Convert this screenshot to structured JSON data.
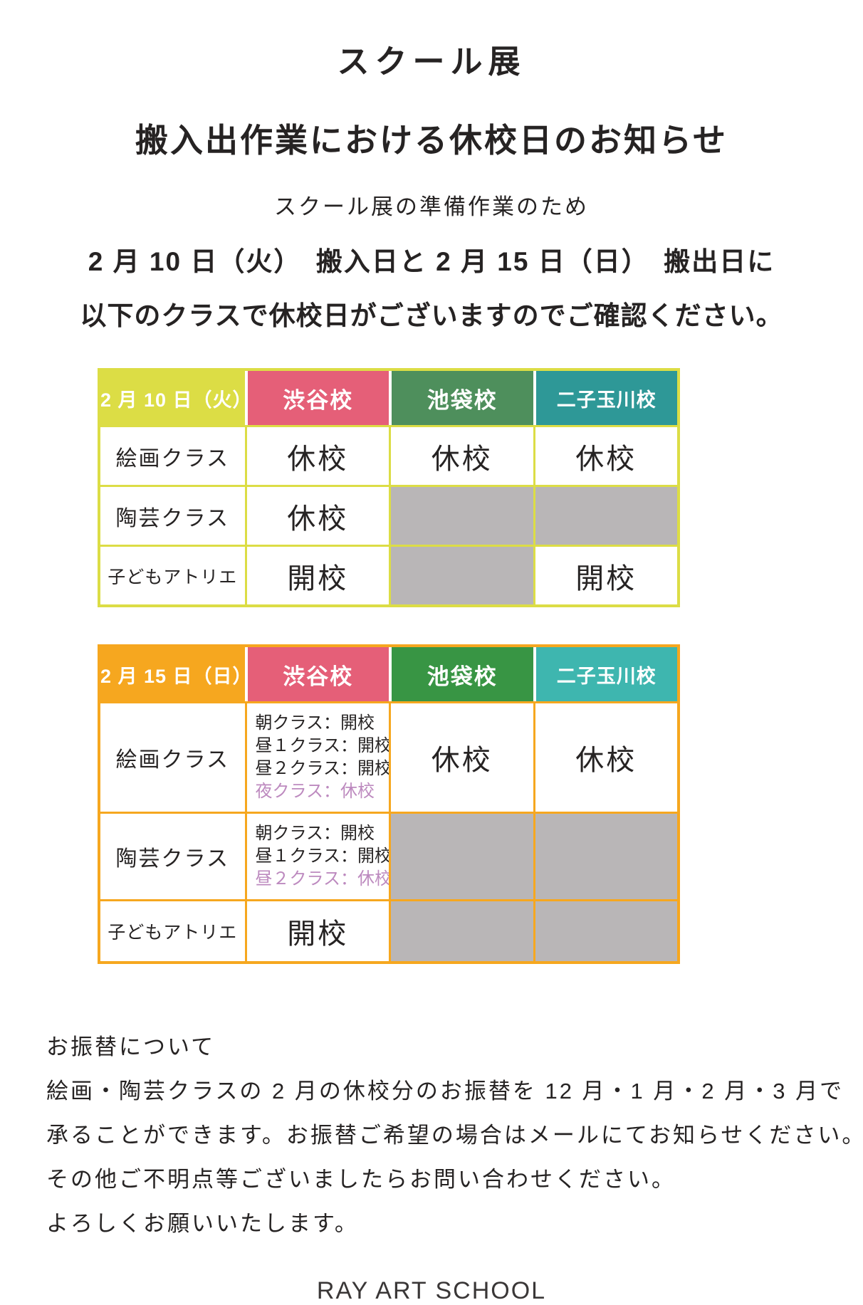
{
  "document": {
    "title_line1": "スクール展",
    "title_line2": "搬入出作業における休校日のお知らせ",
    "intro_lines": [
      "スクール展の準備作業のため",
      "2 月 10 日（火）　搬入日と 2 月 15 日（日）　搬出日に",
      "以下のクラスで休校日がございますのでご確認ください。"
    ],
    "footer": "RAY ART SCHOOL"
  },
  "colors": {
    "text": "#262323",
    "closed_cell_gray": "#b9b6b7",
    "highlight_purple": "#bd8abf",
    "table1_accent": "#dcdd45",
    "table2_accent": "#f6a71f",
    "shibuya_pink": "#e55f78",
    "ikebukuro_green_table1": "#4e8f5c",
    "ikebukuro_green_table2": "#389544",
    "futako_teal_table1": "#2e9897",
    "futako_teal_table2": "#3eb6af"
  },
  "tables": [
    {
      "id": "feb10",
      "date_label": "2 月 10 日（火）",
      "accent": "#dcdd45",
      "columns": [
        {
          "label": "渋谷校",
          "bg": "#e55f78"
        },
        {
          "label": "池袋校",
          "bg": "#4e8f5c"
        },
        {
          "label": "二子玉川校",
          "bg": "#2e9897"
        }
      ],
      "rows": [
        {
          "label": "絵画クラス",
          "cells": [
            {
              "type": "status",
              "text": "休校"
            },
            {
              "type": "status",
              "text": "休校"
            },
            {
              "type": "status",
              "text": "休校"
            }
          ]
        },
        {
          "label": "陶芸クラス",
          "cells": [
            {
              "type": "status",
              "text": "休校"
            },
            {
              "type": "closed"
            },
            {
              "type": "closed"
            }
          ]
        },
        {
          "label": "子どもアトリエ",
          "cells": [
            {
              "type": "status",
              "text": "開校"
            },
            {
              "type": "closed"
            },
            {
              "type": "status",
              "text": "開校"
            }
          ]
        }
      ]
    },
    {
      "id": "feb15",
      "date_label": "2 月 15 日（日）",
      "accent": "#f6a71f",
      "columns": [
        {
          "label": "渋谷校",
          "bg": "#e55f78"
        },
        {
          "label": "池袋校",
          "bg": "#389544"
        },
        {
          "label": "二子玉川校",
          "bg": "#3eb6af"
        }
      ],
      "rows": [
        {
          "label": "絵画クラス",
          "cells": [
            {
              "type": "schedule",
              "lines": [
                {
                  "text": "朝クラス：開校",
                  "highlight": false
                },
                {
                  "text": "昼１クラス：開校",
                  "highlight": false
                },
                {
                  "text": "昼２クラス：開校",
                  "highlight": false
                },
                {
                  "text": "夜クラス：休校",
                  "highlight": true
                }
              ]
            },
            {
              "type": "status",
              "text": "休校"
            },
            {
              "type": "status",
              "text": "休校"
            }
          ]
        },
        {
          "label": "陶芸クラス",
          "cells": [
            {
              "type": "schedule",
              "lines": [
                {
                  "text": "朝クラス：開校",
                  "highlight": false
                },
                {
                  "text": "昼１クラス：開校",
                  "highlight": false
                },
                {
                  "text": "昼２クラス：休校",
                  "highlight": true
                }
              ]
            },
            {
              "type": "closed"
            },
            {
              "type": "closed"
            }
          ]
        },
        {
          "label": "子どもアトリエ",
          "cells": [
            {
              "type": "status",
              "text": "開校"
            },
            {
              "type": "closed"
            },
            {
              "type": "closed"
            }
          ]
        }
      ]
    }
  ],
  "notes": {
    "lines": [
      "お振替について",
      "絵画・陶芸クラスの 2 月の休校分のお振替を 12 月・1 月・2 月・3 月で",
      "承ることができます。お振替ご希望の場合はメールにてお知らせください。",
      "その他ご不明点等ございましたらお問い合わせください。",
      "よろしくお願いいたします。"
    ]
  }
}
